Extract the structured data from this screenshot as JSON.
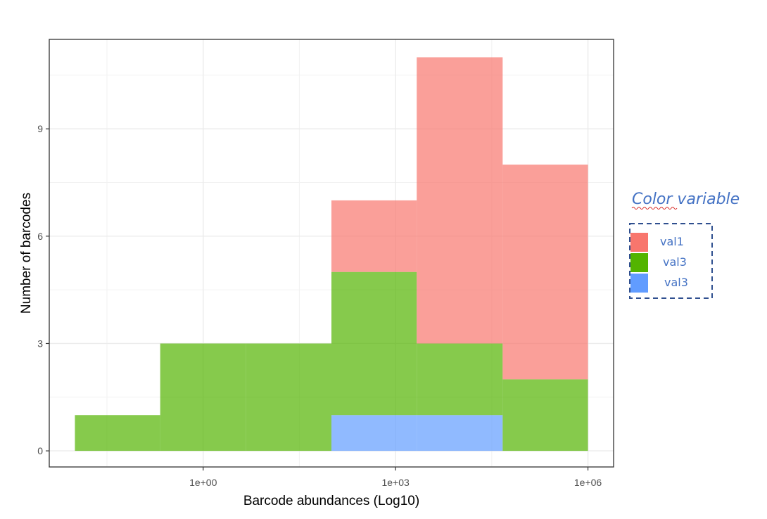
{
  "chart_data": {
    "type": "histogram",
    "xlabel": "Barcode abundances (Log10)",
    "ylabel": "Number of barcodes",
    "x_scale": "log10",
    "x_tick_labels": [
      "1e+00",
      "1e+03",
      "1e+06"
    ],
    "x_ticks": [
      0,
      3,
      6
    ],
    "y_ticks": [
      0,
      3,
      6,
      9
    ],
    "xlim_log10": [
      -2.4,
      6.4
    ],
    "ylim": [
      -0.45,
      11.5
    ],
    "grid": true,
    "stacked": true,
    "legend": {
      "title": "Color variable",
      "placement": "right",
      "entries": [
        {
          "label": "val1",
          "color": "#f8766d"
        },
        {
          "label": "val3",
          "color": "#53b400"
        },
        {
          "label": "val3",
          "color": "#619cff"
        }
      ]
    },
    "bins_log10": [
      {
        "x0": -2.0,
        "x1": -0.67
      },
      {
        "x0": -0.67,
        "x1": 0.67
      },
      {
        "x0": 0.67,
        "x1": 2.0
      },
      {
        "x0": 2.0,
        "x1": 3.33
      },
      {
        "x0": 3.33,
        "x1": 4.67
      },
      {
        "x0": 4.67,
        "x1": 6.0
      }
    ],
    "series": [
      {
        "name": "val3",
        "legend_index": 2,
        "color": "#619cff",
        "values": [
          0,
          0,
          0,
          1,
          1,
          0
        ]
      },
      {
        "name": "val3",
        "legend_index": 1,
        "color": "#53b400",
        "values": [
          1,
          3,
          3,
          4,
          2,
          2
        ]
      },
      {
        "name": "val1",
        "legend_index": 0,
        "color": "#f8766d",
        "values": [
          0,
          0,
          0,
          2,
          8,
          6
        ]
      }
    ],
    "bar_opacity": 0.7
  }
}
